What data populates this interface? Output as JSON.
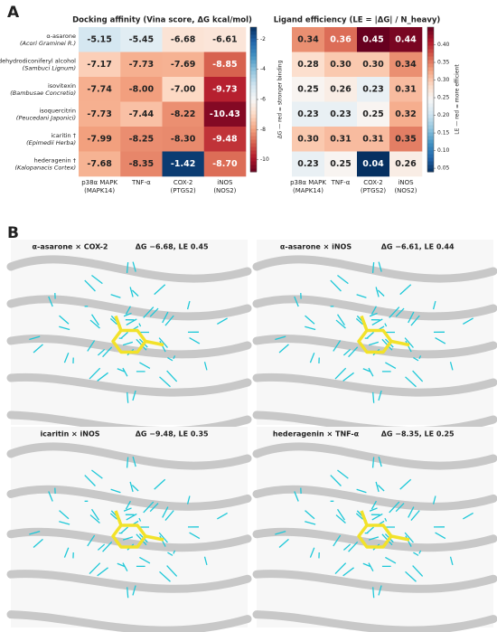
{
  "panel_labels": [
    "A",
    "B"
  ],
  "chart_data": [
    {
      "type": "heatmap",
      "title": "Docking affinity (Vina score, ΔG kcal/mol)",
      "rows": [
        "α-asarone",
        "dehydrodiconiferyl alcohol",
        "isovitexin",
        "isoquercitrin",
        "icaritin †",
        "hederagenin †"
      ],
      "row_sources": [
        "(Acori Graminei R.)",
        "(Sambuci Lignum)",
        "(Bambusae Concretio)",
        "(Peucedani Japonici)",
        "(Epimedii Herba)",
        "(Kalopanacis Cortex)"
      ],
      "categories": [
        "p38α MAPK",
        "TNF-α",
        "COX-2",
        "iNOS"
      ],
      "category_subtitles": [
        "(MAPK14)",
        null,
        "(PTGS2)",
        "(NOS2)"
      ],
      "values": [
        [
          -5.15,
          -5.45,
          -6.68,
          -6.61
        ],
        [
          -7.17,
          -7.73,
          -7.69,
          -8.85
        ],
        [
          -7.74,
          -8.0,
          -7.0,
          -9.73
        ],
        [
          -7.73,
          -7.44,
          -8.22,
          -10.43
        ],
        [
          -7.99,
          -8.25,
          -8.3,
          -9.48
        ],
        [
          -7.68,
          -8.35,
          -1.42,
          -8.7
        ]
      ],
      "value_labels": [
        [
          "-5.15",
          "-5.45",
          "-6.68",
          "-6.61"
        ],
        [
          "-7.17",
          "-7.73",
          "-7.69",
          "-8.85"
        ],
        [
          "-7.74",
          "-8.00",
          "-7.00",
          "-9.73"
        ],
        [
          "-7.73",
          "-7.44",
          "-8.22",
          "-10.43"
        ],
        [
          "-7.99",
          "-8.25",
          "-8.30",
          "-9.48"
        ],
        [
          "-7.68",
          "-8.35",
          "-1.42",
          "-8.70"
        ]
      ],
      "colormap": "RdBu",
      "zlim": [
        -10.8,
        -1.2
      ],
      "zticks": [
        -2,
        -4,
        -6,
        -8,
        -10
      ],
      "colorbar_label": "ΔG — red = stronger binding"
    },
    {
      "type": "heatmap",
      "title": "Ligand efficiency (LE = |ΔG| / N_heavy)",
      "categories": [
        "p38α MAPK",
        "TNF-α",
        "COX-2",
        "iNOS"
      ],
      "category_subtitles": [
        "(MAPK14)",
        null,
        "(PTGS2)",
        "(NOS2)"
      ],
      "values": [
        [
          0.34,
          0.36,
          0.45,
          0.44
        ],
        [
          0.28,
          0.3,
          0.3,
          0.34
        ],
        [
          0.25,
          0.26,
          0.23,
          0.31
        ],
        [
          0.23,
          0.23,
          0.25,
          0.32
        ],
        [
          0.3,
          0.31,
          0.31,
          0.35
        ],
        [
          0.23,
          0.25,
          0.04,
          0.26
        ]
      ],
      "value_labels": [
        [
          "0.34",
          "0.36",
          "0.45",
          "0.44"
        ],
        [
          "0.28",
          "0.30",
          "0.30",
          "0.34"
        ],
        [
          "0.25",
          "0.26",
          "0.23",
          "0.31"
        ],
        [
          "0.23",
          "0.23",
          "0.25",
          "0.32"
        ],
        [
          "0.30",
          "0.31",
          "0.31",
          "0.35"
        ],
        [
          "0.23",
          "0.25",
          "0.04",
          "0.26"
        ]
      ],
      "colormap": "RdBu_r",
      "zlim": [
        0.04,
        0.45
      ],
      "zticks": [
        {
          "value": 0.05,
          "label": "0.05"
        },
        {
          "value": 0.1,
          "label": "0.10"
        },
        {
          "value": 0.15,
          "label": "0.15"
        },
        {
          "value": 0.2,
          "label": "0.20"
        },
        {
          "value": 0.25,
          "label": "0.25"
        },
        {
          "value": 0.3,
          "label": "0.30"
        },
        {
          "value": 0.35,
          "label": "0.35"
        },
        {
          "value": 0.4,
          "label": "0.40"
        }
      ],
      "colorbar_label": "LE — red = more efficient"
    }
  ],
  "structures": [
    {
      "title": "α-asarone × COX-2",
      "energy": "ΔG −6.68, LE 0.45"
    },
    {
      "title": "α-asarone × iNOS",
      "energy": "ΔG −6.61, LE 0.44"
    },
    {
      "title": "icaritin × iNOS",
      "energy": "ΔG −9.48, LE 0.35"
    },
    {
      "title": "hederagenin × TNF-α",
      "energy": "ΔG −8.35, LE 0.25"
    }
  ]
}
